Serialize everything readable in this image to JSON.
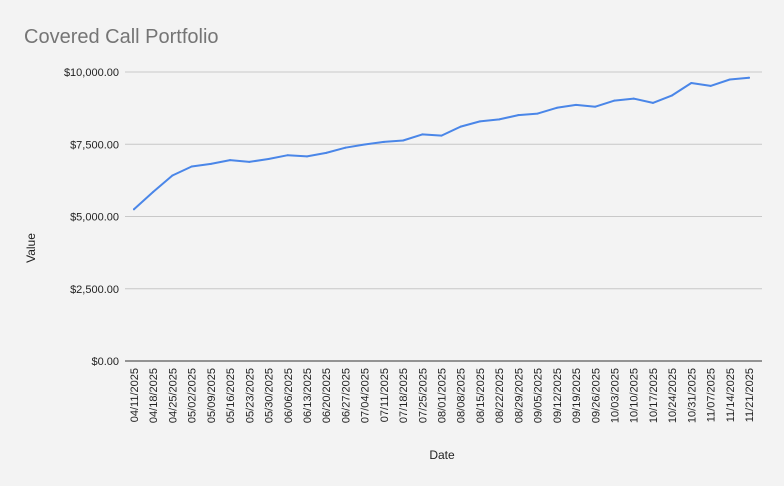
{
  "chart_data": {
    "type": "line",
    "title": "Covered Call Portfolio",
    "xlabel": "Date",
    "ylabel": "Value",
    "ylim": [
      0,
      10000
    ],
    "y_ticks": [
      "$0.00",
      "$2,500.00",
      "$5,000.00",
      "$7,500.00",
      "$10,000.00"
    ],
    "grid": true,
    "legend": "none",
    "line_color": "#4a86e8",
    "categories": [
      "04/11/2025",
      "04/18/2025",
      "04/25/2025",
      "05/02/2025",
      "05/09/2025",
      "05/16/2025",
      "05/23/2025",
      "05/30/2025",
      "06/06/2025",
      "06/13/2025",
      "06/20/2025",
      "06/27/2025",
      "07/04/2025",
      "07/11/2025",
      "07/18/2025",
      "07/25/2025",
      "08/01/2025",
      "08/08/2025",
      "08/15/2025",
      "08/22/2025",
      "08/29/2025",
      "09/05/2025",
      "09/12/2025",
      "09/19/2025",
      "09/26/2025",
      "10/03/2025",
      "10/10/2025",
      "10/17/2025",
      "10/24/2025",
      "10/31/2025",
      "11/07/2025",
      "11/14/2025",
      "11/21/2025"
    ],
    "series": [
      {
        "values": [
          5250,
          5850,
          6420,
          6730,
          6820,
          6950,
          6890,
          6990,
          7120,
          7080,
          7200,
          7380,
          7490,
          7580,
          7630,
          7840,
          7800,
          8110,
          8290,
          8360,
          8510,
          8560,
          8760,
          8860,
          8800,
          9010,
          9080,
          8930,
          9190,
          9620,
          9520,
          9740,
          9800
        ]
      }
    ]
  }
}
